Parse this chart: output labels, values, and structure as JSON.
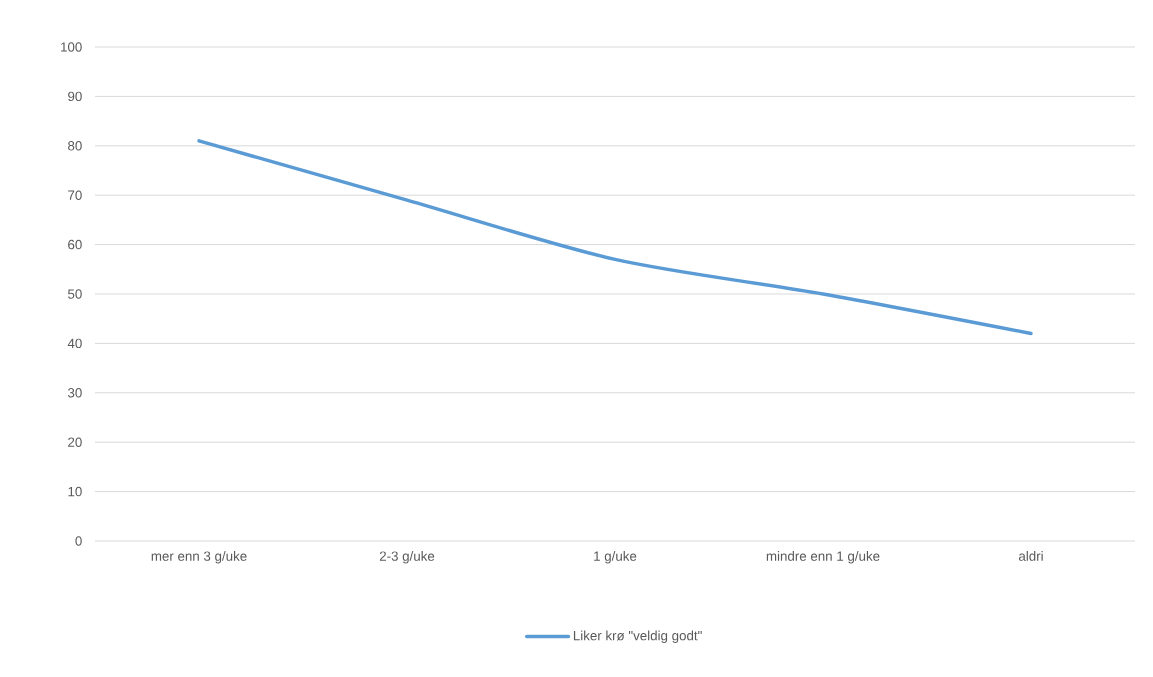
{
  "chart_data": {
    "type": "line",
    "categories": [
      "mer enn 3 g/uke",
      "2-3 g/uke",
      "1  g/uke",
      "mindre enn 1 g/uke",
      "aldri"
    ],
    "series": [
      {
        "name": "Liker krø \"veldig godt\"",
        "color": "#5b9bd5",
        "values": [
          81,
          69,
          57,
          50,
          42
        ]
      }
    ],
    "ylim": [
      0,
      100
    ],
    "yticks": [
      0,
      10,
      20,
      30,
      40,
      50,
      60,
      70,
      80,
      90,
      100
    ],
    "grid": "y",
    "legend": "bottom",
    "marker": "none",
    "line_style": "solid"
  }
}
